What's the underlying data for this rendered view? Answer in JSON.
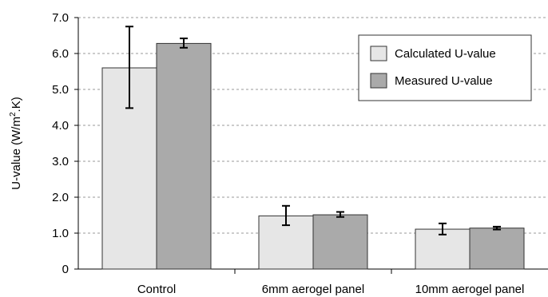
{
  "chart_data": {
    "type": "bar",
    "categories": [
      "Control",
      "6mm aerogel panel",
      "10mm aerogel panel"
    ],
    "series": [
      {
        "name": "Calculated U-value",
        "values": [
          5.6,
          1.48,
          1.11
        ],
        "error_low": [
          4.48,
          1.22,
          0.96
        ],
        "error_high": [
          6.75,
          1.76,
          1.27
        ],
        "color": "#e6e6e6"
      },
      {
        "name": "Measured U-value",
        "values": [
          6.28,
          1.51,
          1.14
        ],
        "error_low": [
          6.16,
          1.45,
          1.1
        ],
        "error_high": [
          6.42,
          1.59,
          1.18
        ],
        "color": "#aaaaaa"
      }
    ],
    "ylabel_prefix": "U-value (W/m",
    "ylabel_sup": "2",
    "ylabel_suffix": ".K)",
    "ylim": [
      0,
      7
    ],
    "yticks": [
      "0",
      "1.0",
      "2.0",
      "3.0",
      "4.0",
      "5.0",
      "6.0",
      "7.0"
    ],
    "grid": true,
    "legend_position": "top-right"
  }
}
